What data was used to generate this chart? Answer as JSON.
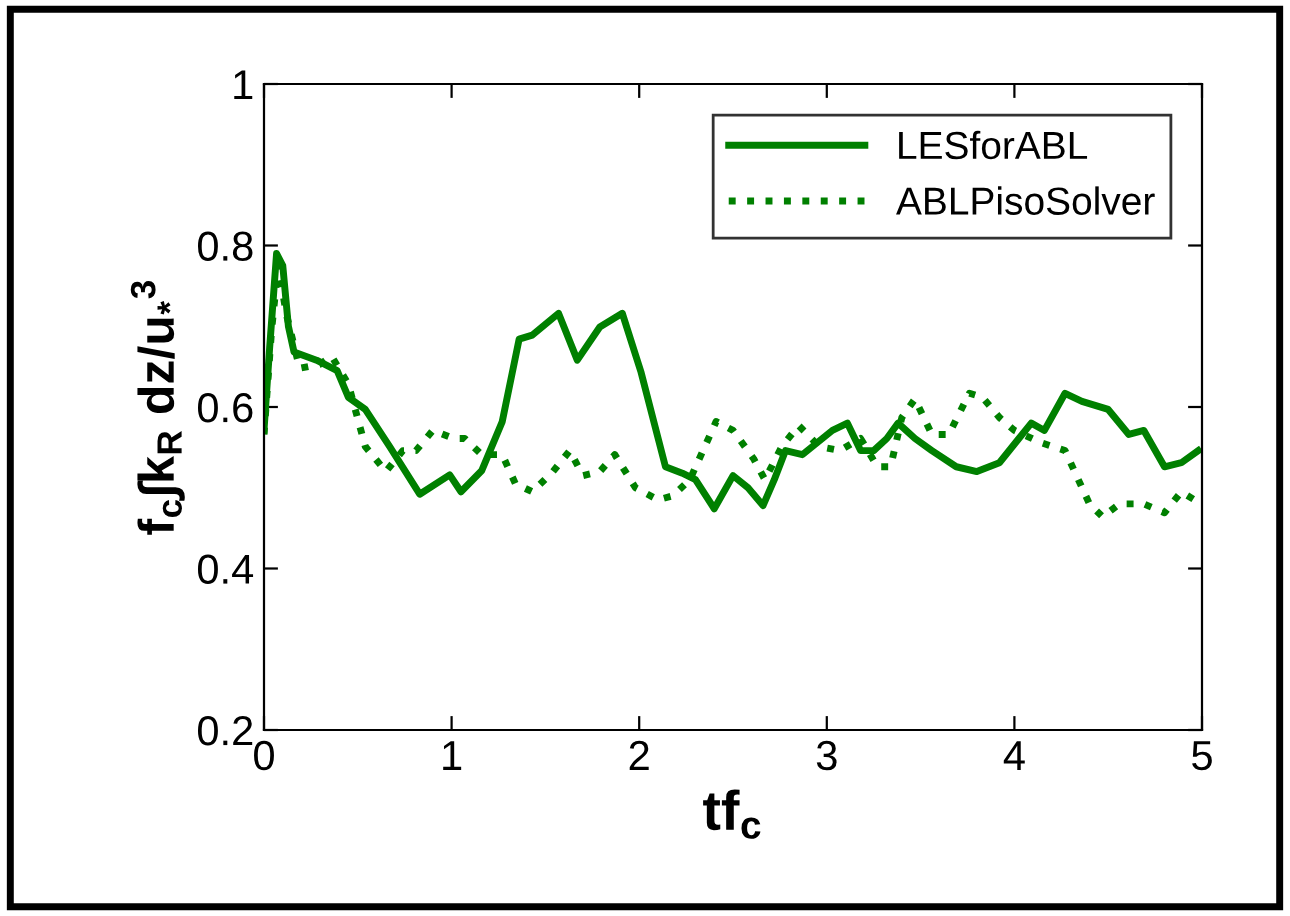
{
  "chart_data": {
    "type": "line",
    "xlabel": "tf$_{c}$",
    "ylabel": "f$_{c}$∫k$_{R}$ dz/u$_{*}$$^{3}$",
    "xlim": [
      0,
      5
    ],
    "ylim": [
      0.2,
      1
    ],
    "xticks": [
      0,
      1,
      2,
      3,
      4,
      5
    ],
    "yticks": [
      0.2,
      0.4,
      0.6,
      0.8,
      1
    ],
    "legend": "top right",
    "grid": false,
    "series": [
      {
        "name": "LESforABL",
        "color": "#008000",
        "line_style": "solid",
        "x": [
          0,
          0.03,
          0.067,
          0.1,
          0.13,
          0.16,
          0.28,
          0.39,
          0.45,
          0.54,
          0.67,
          0.83,
          0.99,
          1.05,
          1.16,
          1.27,
          1.36,
          1.43,
          1.57,
          1.67,
          1.79,
          1.91,
          2.01,
          2.14,
          2.23,
          2.3,
          2.4,
          2.5,
          2.58,
          2.66,
          2.72,
          2.78,
          2.87,
          3.03,
          3.11,
          3.18,
          3.25,
          3.32,
          3.38,
          3.47,
          3.56,
          3.69,
          3.8,
          3.92,
          4.09,
          4.16,
          4.27,
          4.36,
          4.5,
          4.61,
          4.69,
          4.8,
          4.89,
          4.98
        ],
        "values": [
          0.571,
          0.673,
          0.79,
          0.775,
          0.7,
          0.668,
          0.658,
          0.645,
          0.612,
          0.597,
          0.551,
          0.492,
          0.516,
          0.495,
          0.521,
          0.582,
          0.684,
          0.689,
          0.716,
          0.658,
          0.699,
          0.716,
          0.643,
          0.526,
          0.518,
          0.51,
          0.474,
          0.515,
          0.5,
          0.478,
          0.51,
          0.546,
          0.541,
          0.571,
          0.58,
          0.546,
          0.546,
          0.561,
          0.58,
          0.561,
          0.546,
          0.526,
          0.52,
          0.531,
          0.58,
          0.571,
          0.617,
          0.607,
          0.597,
          0.566,
          0.571,
          0.526,
          0.531,
          0.546
        ]
      },
      {
        "name": "ABLPisoSolver",
        "color": "#008000",
        "line_style": "dotted",
        "x": [
          0,
          0.04,
          0.075,
          0.12,
          0.19,
          0.3,
          0.36,
          0.45,
          0.54,
          0.65,
          0.74,
          0.81,
          0.9,
          1.01,
          1.07,
          1.16,
          1.27,
          1.34,
          1.43,
          1.54,
          1.63,
          1.7,
          1.79,
          1.87,
          1.98,
          2.1,
          2.18,
          2.27,
          2.41,
          2.5,
          2.61,
          2.67,
          2.76,
          2.85,
          2.96,
          3.07,
          3.18,
          3.27,
          3.34,
          3.4,
          3.47,
          3.56,
          3.65,
          3.76,
          3.83,
          3.92,
          4.0,
          4.14,
          4.27,
          4.4,
          4.47,
          4.56,
          4.69,
          4.8,
          4.89,
          4.96
        ],
        "values": [
          0.566,
          0.694,
          0.775,
          0.714,
          0.648,
          0.653,
          0.663,
          0.628,
          0.551,
          0.52,
          0.546,
          0.546,
          0.571,
          0.561,
          0.561,
          0.541,
          0.541,
          0.505,
          0.495,
          0.52,
          0.546,
          0.515,
          0.52,
          0.541,
          0.5,
          0.485,
          0.49,
          0.51,
          0.582,
          0.571,
          0.536,
          0.51,
          0.551,
          0.577,
          0.551,
          0.546,
          0.561,
          0.526,
          0.526,
          0.587,
          0.61,
          0.566,
          0.566,
          0.617,
          0.612,
          0.587,
          0.571,
          0.556,
          0.546,
          0.48,
          0.464,
          0.48,
          0.48,
          0.469,
          0.495,
          0.485
        ]
      }
    ]
  }
}
